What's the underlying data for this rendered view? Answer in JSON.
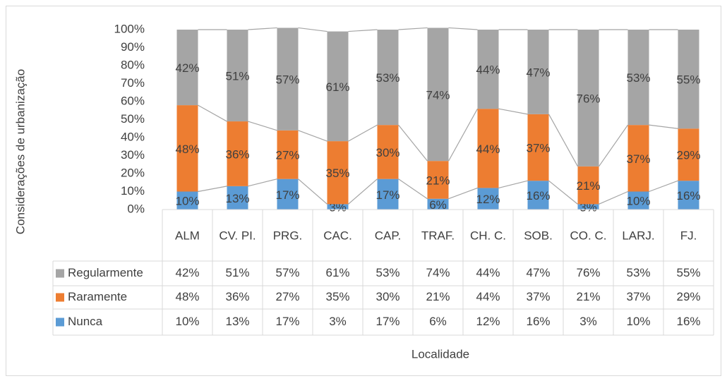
{
  "chart_data": {
    "type": "bar",
    "stacked": true,
    "categories": [
      "ALM",
      "CV. PI.",
      "PRG.",
      "CAC.",
      "CAP.",
      "TRAF.",
      "CH. C.",
      "SOB.",
      "CO. C.",
      "LARJ.",
      "FJ."
    ],
    "series": [
      {
        "name": "Nunca",
        "color": "#5b9bd5",
        "values": [
          10,
          13,
          17,
          3,
          17,
          6,
          12,
          16,
          3,
          10,
          16
        ],
        "value_labels": [
          "10%",
          "13%",
          "17%",
          "3%",
          "17%",
          "6%",
          "12%",
          "16%",
          "3%",
          "10%",
          "16%"
        ]
      },
      {
        "name": "Raramente",
        "color": "#ed7d31",
        "values": [
          48,
          36,
          27,
          35,
          30,
          21,
          44,
          37,
          21,
          37,
          29
        ],
        "value_labels": [
          "48%",
          "36%",
          "27%",
          "35%",
          "30%",
          "21%",
          "44%",
          "37%",
          "21%",
          "37%",
          "29%"
        ]
      },
      {
        "name": "Regularmente",
        "color": "#a5a5a5",
        "values": [
          42,
          51,
          57,
          61,
          53,
          74,
          44,
          47,
          76,
          53,
          55
        ],
        "value_labels": [
          "42%",
          "51%",
          "57%",
          "61%",
          "53%",
          "74%",
          "44%",
          "47%",
          "76%",
          "53%",
          "55%"
        ]
      }
    ],
    "ylabel": "Considerações de urbanização",
    "xlabel": "Localidade",
    "ylim": [
      0,
      100
    ],
    "yticks": [
      {
        "value": 0,
        "label": "0%"
      },
      {
        "value": 10,
        "label": "10%"
      },
      {
        "value": 20,
        "label": "20%"
      },
      {
        "value": 30,
        "label": "30%"
      },
      {
        "value": 40,
        "label": "40%"
      },
      {
        "value": 50,
        "label": "50%"
      },
      {
        "value": 60,
        "label": "60%"
      },
      {
        "value": 70,
        "label": "70%"
      },
      {
        "value": 80,
        "label": "80%"
      },
      {
        "value": 90,
        "label": "90%"
      },
      {
        "value": 100,
        "label": "100%"
      }
    ],
    "series_lines": true,
    "data_table": true
  }
}
